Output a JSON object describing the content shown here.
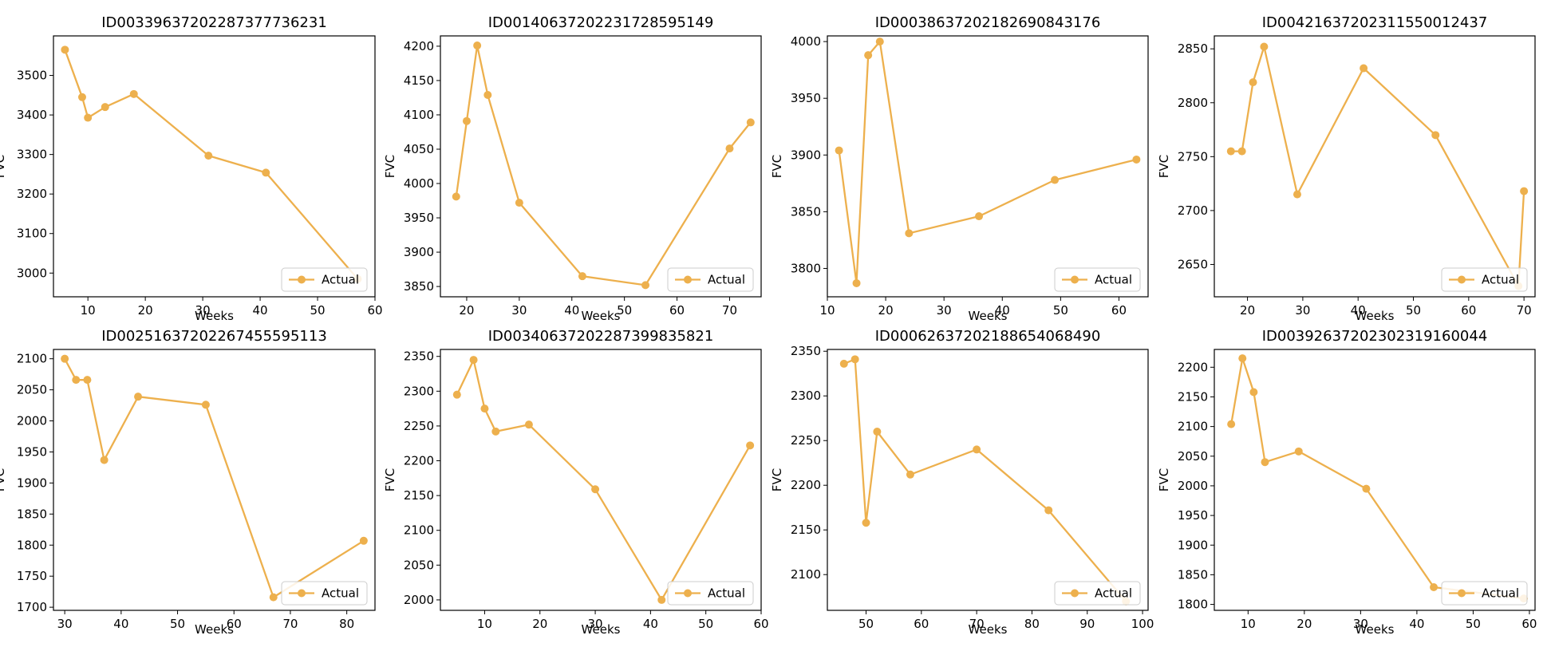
{
  "colors": {
    "series": "#EDB04D",
    "axes": "#000000",
    "legend_border": "#cccccc"
  },
  "legend_label": "Actual",
  "chart_data": [
    {
      "type": "line",
      "title": "ID00339637202287377736231",
      "xlabel": "Weeks",
      "ylabel": "FVC",
      "xlim": [
        4,
        60
      ],
      "ylim": [
        2940,
        3600
      ],
      "xticks": [
        10,
        20,
        30,
        40,
        50,
        60
      ],
      "yticks": [
        3000,
        3100,
        3200,
        3300,
        3400,
        3500
      ],
      "legend": "lower-right",
      "series": [
        {
          "name": "Actual",
          "x": [
            6,
            9,
            10,
            13,
            18,
            31,
            41,
            57
          ],
          "y": [
            3565,
            3445,
            3393,
            3420,
            3453,
            3297,
            3254,
            2985
          ]
        }
      ]
    },
    {
      "type": "line",
      "title": "ID00140637202231728595149",
      "xlabel": "Weeks",
      "ylabel": "FVC",
      "xlim": [
        15,
        76
      ],
      "ylim": [
        3835,
        4215
      ],
      "xticks": [
        20,
        30,
        40,
        50,
        60,
        70
      ],
      "yticks": [
        3850,
        3900,
        3950,
        4000,
        4050,
        4100,
        4150,
        4200
      ],
      "legend": "lower-right",
      "series": [
        {
          "name": "Actual",
          "x": [
            18,
            20,
            22,
            24,
            30,
            42,
            54,
            70,
            74
          ],
          "y": [
            3981,
            4091,
            4201,
            4129,
            3972,
            3865,
            3852,
            4051,
            4089
          ]
        }
      ]
    },
    {
      "type": "line",
      "title": "ID00038637202182690843176",
      "xlabel": "Weeks",
      "ylabel": "FVC",
      "xlim": [
        10,
        65
      ],
      "ylim": [
        3775,
        4005
      ],
      "xticks": [
        10,
        20,
        30,
        40,
        50,
        60
      ],
      "yticks": [
        3800,
        3850,
        3900,
        3950,
        4000
      ],
      "legend": "lower-right",
      "series": [
        {
          "name": "Actual",
          "x": [
            12,
            15,
            17,
            19,
            24,
            36,
            49,
            63
          ],
          "y": [
            3904,
            3787,
            3988,
            4000,
            3831,
            3846,
            3878,
            3896
          ]
        }
      ]
    },
    {
      "type": "line",
      "title": "ID00421637202311550012437",
      "xlabel": "Weeks",
      "ylabel": "FVC",
      "xlim": [
        14,
        72
      ],
      "ylim": [
        2620,
        2862
      ],
      "xticks": [
        20,
        30,
        40,
        50,
        60,
        70
      ],
      "yticks": [
        2650,
        2700,
        2750,
        2800,
        2850
      ],
      "legend": "lower-right",
      "series": [
        {
          "name": "Actual",
          "x": [
            17,
            19,
            21,
            23,
            29,
            41,
            54,
            69,
            70
          ],
          "y": [
            2755,
            2755,
            2819,
            2852,
            2715,
            2832,
            2770,
            2630,
            2718
          ]
        }
      ]
    },
    {
      "type": "line",
      "title": "ID00251637202267455595113",
      "xlabel": "Weeks",
      "ylabel": "FVC",
      "xlim": [
        28,
        85
      ],
      "ylim": [
        1695,
        2115
      ],
      "xticks": [
        30,
        40,
        50,
        60,
        70,
        80
      ],
      "yticks": [
        1700,
        1750,
        1800,
        1850,
        1900,
        1950,
        2000,
        2050,
        2100
      ],
      "legend": "lower-right",
      "series": [
        {
          "name": "Actual",
          "x": [
            30,
            32,
            34,
            37,
            43,
            55,
            67,
            83
          ],
          "y": [
            2100,
            2066,
            2066,
            1937,
            2039,
            2026,
            1716,
            1807
          ]
        }
      ]
    },
    {
      "type": "line",
      "title": "ID00340637202287399835821",
      "xlabel": "Weeks",
      "ylabel": "FVC",
      "xlim": [
        2,
        60
      ],
      "ylim": [
        1985,
        2360
      ],
      "xticks": [
        10,
        20,
        30,
        40,
        50,
        60
      ],
      "yticks": [
        2000,
        2050,
        2100,
        2150,
        2200,
        2250,
        2300,
        2350
      ],
      "legend": "lower-right",
      "series": [
        {
          "name": "Actual",
          "x": [
            5,
            8,
            10,
            12,
            18,
            30,
            42,
            58
          ],
          "y": [
            2295,
            2345,
            2275,
            2242,
            2252,
            2159,
            2000,
            2222
          ]
        }
      ]
    },
    {
      "type": "line",
      "title": "ID00062637202188654068490",
      "xlabel": "Weeks",
      "ylabel": "FVC",
      "xlim": [
        43,
        101
      ],
      "ylim": [
        2060,
        2352
      ],
      "xticks": [
        50,
        60,
        70,
        80,
        90,
        100
      ],
      "yticks": [
        2100,
        2150,
        2200,
        2250,
        2300,
        2350
      ],
      "legend": "lower-right",
      "series": [
        {
          "name": "Actual",
          "x": [
            46,
            48,
            50,
            52,
            58,
            70,
            83,
            97
          ],
          "y": [
            2336,
            2341,
            2158,
            2260,
            2212,
            2240,
            2172,
            2070
          ]
        }
      ]
    },
    {
      "type": "line",
      "title": "ID00392637202302319160044",
      "xlabel": "Weeks",
      "ylabel": "FVC",
      "xlim": [
        4,
        61
      ],
      "ylim": [
        1790,
        2230
      ],
      "xticks": [
        10,
        20,
        30,
        40,
        50,
        60
      ],
      "yticks": [
        1800,
        1850,
        1900,
        1950,
        2000,
        2050,
        2100,
        2150,
        2200
      ],
      "legend": "lower-right",
      "series": [
        {
          "name": "Actual",
          "x": [
            7,
            9,
            11,
            13,
            19,
            31,
            43,
            59
          ],
          "y": [
            2104,
            2215,
            2158,
            2040,
            2058,
            1995,
            1829,
            1810
          ]
        }
      ]
    }
  ]
}
